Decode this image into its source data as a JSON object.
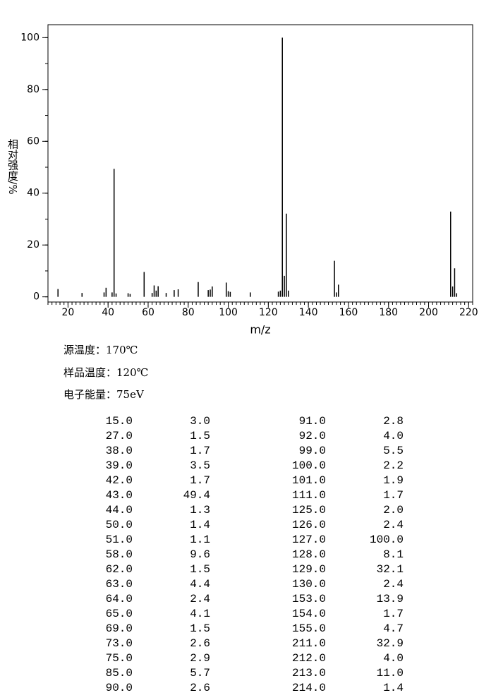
{
  "chart_data": {
    "type": "bar",
    "xlabel": "m/z",
    "ylabel": "相对强度/%",
    "x": [
      15,
      27,
      38,
      39,
      42,
      43,
      44,
      50,
      51,
      58,
      62,
      63,
      64,
      65,
      69,
      73,
      75,
      85,
      90,
      91,
      92,
      99,
      100,
      101,
      111,
      125,
      126,
      127,
      128,
      129,
      130,
      153,
      154,
      155,
      211,
      212,
      213,
      214
    ],
    "x_labels": [
      "15.0",
      "27.0",
      "38.0",
      "39.0",
      "42.0",
      "43.0",
      "44.0",
      "50.0",
      "51.0",
      "58.0",
      "62.0",
      "63.0",
      "64.0",
      "65.0",
      "69.0",
      "73.0",
      "75.0",
      "85.0",
      "90.0",
      "91.0",
      "92.0",
      "99.0",
      "100.0",
      "101.0",
      "111.0",
      "125.0",
      "126.0",
      "127.0",
      "128.0",
      "129.0",
      "130.0",
      "153.0",
      "154.0",
      "155.0",
      "211.0",
      "212.0",
      "213.0",
      "214.0"
    ],
    "values": [
      3.0,
      1.5,
      1.7,
      3.5,
      1.7,
      49.4,
      1.3,
      1.4,
      1.1,
      9.6,
      1.5,
      4.4,
      2.4,
      4.1,
      1.5,
      2.6,
      2.9,
      5.7,
      2.6,
      2.8,
      4.0,
      5.5,
      2.2,
      1.9,
      1.7,
      2.0,
      2.4,
      100.0,
      8.1,
      32.1,
      2.4,
      13.9,
      1.7,
      4.7,
      32.9,
      4.0,
      11.0,
      1.4
    ],
    "value_labels": [
      "3.0",
      "1.5",
      "1.7",
      "3.5",
      "1.7",
      "49.4",
      "1.3",
      "1.4",
      "1.1",
      "9.6",
      "1.5",
      "4.4",
      "2.4",
      "4.1",
      "1.5",
      "2.6",
      "2.9",
      "5.7",
      "2.6",
      "2.8",
      "4.0",
      "5.5",
      "2.2",
      "1.9",
      "1.7",
      "2.0",
      "2.4",
      "100.0",
      "8.1",
      "32.1",
      "2.4",
      "13.9",
      "1.7",
      "4.7",
      "32.9",
      "4.0",
      "11.0",
      "1.4"
    ],
    "color": "#000000",
    "xlim": [
      10,
      222
    ],
    "ylim": [
      -2,
      105
    ],
    "xticks": [
      20,
      40,
      60,
      80,
      100,
      120,
      140,
      160,
      180,
      200,
      220
    ],
    "yticks": [
      0,
      20,
      40,
      60,
      80,
      100
    ]
  },
  "notes": [
    "源温度：170℃",
    "样品温度：120℃",
    "电子能量：75eV"
  ]
}
